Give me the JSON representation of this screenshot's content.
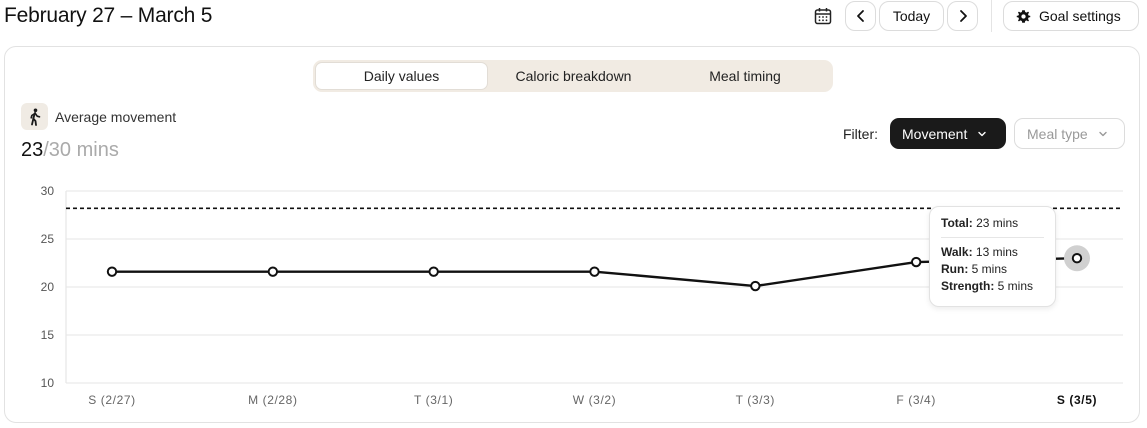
{
  "header": {
    "date_range": "February 27 – March 5",
    "today_label": "Today",
    "goal_settings_label": "Goal settings",
    "icons": {
      "calendar": "calendar-icon",
      "prev": "chevron-left-icon",
      "next": "chevron-right-icon",
      "gear": "gear-icon"
    }
  },
  "tabs": [
    {
      "label": "Daily values",
      "active": true
    },
    {
      "label": "Caloric breakdown",
      "active": false
    },
    {
      "label": "Meal timing",
      "active": false
    }
  ],
  "metric": {
    "icon": "walking-person-icon",
    "label": "Average movement",
    "value": "23",
    "goal": "/30 mins"
  },
  "filter": {
    "label": "Filter:",
    "movement": "Movement",
    "meal_type": "Meal type"
  },
  "tooltip": {
    "total_label": "Total:",
    "total_value": "23 mins",
    "walk_label": "Walk:",
    "walk_value": "13 mins",
    "run_label": "Run:",
    "run_value": "5 mins",
    "strength_label": "Strength:",
    "strength_value": "5 mins"
  },
  "colors": {
    "accent": "#1a1a1a",
    "tab_bg": "#f1ebe3",
    "grid": "#e6e6e6"
  },
  "chart_data": {
    "type": "line",
    "categories": [
      "S (2/27)",
      "M (2/28)",
      "T (3/1)",
      "W (3/2)",
      "T (3/3)",
      "F (3/4)",
      "S (3/5)"
    ],
    "series": [
      {
        "values": [
          21.6,
          21.6,
          21.6,
          21.6,
          20.1,
          22.6,
          23
        ]
      }
    ],
    "goal_line": 28.2,
    "ylim": [
      10,
      30
    ],
    "yticks": [
      30,
      25,
      20,
      15,
      10
    ],
    "highlight_index": 6,
    "grid": true,
    "title": "",
    "xlabel": "",
    "ylabel": ""
  }
}
